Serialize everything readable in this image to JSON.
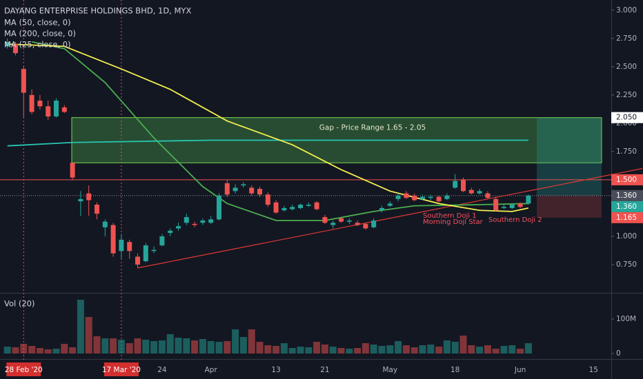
{
  "chart_data": {
    "type": "candlestick",
    "title": "DAYANG ENTERPRISE HOLDINGS BHD, 1D, MYX",
    "open": [
      2.68,
      2.7,
      2.48,
      2.25,
      2.2,
      2.15,
      2.06,
      2.14,
      1.65,
      1.31,
      1.38,
      1.28,
      1.08,
      1.1,
      0.87,
      0.95,
      0.82,
      0.78,
      0.87,
      0.92,
      1.03,
      1.07,
      1.12,
      1.11,
      1.12,
      1.12,
      1.15,
      1.47,
      1.4,
      1.45,
      1.43,
      1.42,
      1.37,
      1.3,
      1.23,
      1.24,
      1.25,
      1.27,
      1.3,
      1.17,
      1.1,
      1.16,
      1.13,
      1.12,
      1.11,
      1.08,
      1.23,
      1.27,
      1.33,
      1.38,
      1.36,
      1.33,
      1.34,
      1.35,
      1.33,
      1.43,
      1.5,
      1.41,
      1.38,
      1.38,
      1.33,
      1.25,
      1.25,
      1.29,
      1.29
    ],
    "high": [
      2.75,
      2.72,
      2.5,
      2.3,
      2.25,
      2.2,
      2.22,
      2.16,
      1.65,
      1.4,
      1.45,
      1.3,
      1.15,
      1.12,
      1.02,
      0.97,
      0.85,
      0.94,
      0.91,
      1.02,
      1.07,
      1.12,
      1.2,
      1.13,
      1.16,
      1.18,
      1.38,
      1.5,
      1.46,
      1.48,
      1.45,
      1.44,
      1.39,
      1.32,
      1.27,
      1.28,
      1.29,
      1.3,
      1.31,
      1.19,
      1.14,
      1.17,
      1.16,
      1.14,
      1.12,
      1.16,
      1.27,
      1.31,
      1.38,
      1.4,
      1.38,
      1.37,
      1.37,
      1.36,
      1.38,
      1.55,
      1.52,
      1.43,
      1.42,
      1.4,
      1.35,
      1.28,
      1.29,
      1.3,
      1.37
    ],
    "low": [
      2.66,
      2.6,
      2.05,
      2.08,
      2.12,
      2.03,
      2.05,
      2.09,
      1.5,
      1.18,
      1.18,
      1.15,
      1.0,
      0.82,
      0.8,
      0.8,
      0.72,
      0.77,
      0.85,
      0.91,
      1.0,
      1.05,
      1.1,
      1.08,
      1.1,
      1.11,
      1.14,
      1.35,
      1.38,
      1.43,
      1.36,
      1.35,
      1.26,
      1.2,
      1.22,
      1.23,
      1.24,
      1.26,
      1.23,
      1.11,
      1.07,
      1.12,
      1.11,
      1.09,
      1.06,
      1.07,
      1.21,
      1.26,
      1.31,
      1.33,
      1.31,
      1.32,
      1.32,
      1.3,
      1.32,
      1.42,
      1.39,
      1.37,
      1.37,
      1.33,
      1.22,
      1.24,
      1.24,
      1.25,
      1.28
    ],
    "close": [
      2.72,
      2.62,
      2.27,
      2.1,
      2.15,
      2.06,
      2.2,
      2.1,
      1.52,
      1.33,
      1.32,
      1.2,
      1.13,
      0.85,
      0.97,
      0.87,
      0.75,
      0.92,
      0.88,
      1.0,
      1.05,
      1.09,
      1.17,
      1.1,
      1.14,
      1.15,
      1.36,
      1.37,
      1.43,
      1.46,
      1.38,
      1.37,
      1.28,
      1.21,
      1.25,
      1.26,
      1.28,
      1.28,
      1.24,
      1.12,
      1.12,
      1.13,
      1.14,
      1.1,
      1.07,
      1.14,
      1.25,
      1.29,
      1.36,
      1.34,
      1.32,
      1.35,
      1.35,
      1.31,
      1.36,
      1.49,
      1.4,
      1.38,
      1.4,
      1.34,
      1.23,
      1.26,
      1.28,
      1.26,
      1.36
    ],
    "up_color": "#26a69a",
    "down_color": "#ef5350",
    "ylim": [
      0.5,
      3.09
    ],
    "yticks": [
      {
        "value": 3,
        "label": "3.000"
      },
      {
        "value": 2.75,
        "label": "2.750"
      },
      {
        "value": 2.5,
        "label": "2.500"
      },
      {
        "value": 2.25,
        "label": "2.250"
      },
      {
        "value": 2,
        "label": "2.000"
      },
      {
        "value": 1.75,
        "label": "1.750"
      },
      {
        "value": 1,
        "label": "1.000"
      },
      {
        "value": 0.75,
        "label": "0.750"
      }
    ],
    "xticks": [
      {
        "value": 2,
        "label": "28 Feb '20"
      },
      {
        "value": 14,
        "label": "17 Mar '20"
      },
      {
        "value": 19,
        "label": "24"
      },
      {
        "value": 25,
        "label": "Apr"
      },
      {
        "value": 33,
        "label": "13"
      },
      {
        "value": 39,
        "label": "21"
      },
      {
        "value": 47,
        "label": "May"
      },
      {
        "value": 55,
        "label": "18"
      },
      {
        "value": 63,
        "label": "Jun"
      },
      {
        "value": 72,
        "label": "15"
      }
    ],
    "highlight_ticks": [
      0,
      1
    ],
    "moving_averages": [
      {
        "name": "MA (50, close, 0)",
        "color": "#4caf50",
        "x": [
          3,
          7,
          12,
          18,
          24,
          27,
          33,
          39,
          45,
          50,
          58,
          64
        ],
        "values": [
          2.72,
          2.66,
          2.36,
          1.87,
          1.44,
          1.29,
          1.14,
          1.14,
          1.22,
          1.27,
          1.28,
          1.29
        ]
      },
      {
        "name": "MA (200, close, 0)",
        "color": "#26c6b0",
        "x": [
          0,
          8,
          25,
          42,
          64
        ],
        "values": [
          1.8,
          1.83,
          1.85,
          1.85,
          1.85
        ]
      },
      {
        "name": "MA (25, close, 0)",
        "color": "#f5f04f",
        "x": [
          0,
          7,
          14,
          20,
          27,
          35,
          41,
          47,
          53,
          58,
          62,
          64
        ],
        "values": [
          2.7,
          2.68,
          2.48,
          2.3,
          2.02,
          1.81,
          1.59,
          1.4,
          1.29,
          1.23,
          1.22,
          1.25
        ]
      }
    ],
    "gap_zone": {
      "text": "Gap - Price Range 1.65 - 2.05",
      "low": 1.65,
      "high": 2.05
    },
    "projection": {
      "target": 2.05,
      "entry": 1.36,
      "stop": 1.165
    },
    "trendline": {
      "x": [
        16,
        78
      ],
      "values": [
        0.72,
        1.6
      ]
    },
    "resistance_line": 1.5,
    "last_price": 1.36,
    "annotations": [
      {
        "text": "Southern Doji 1"
      },
      {
        "text": "Morning Doji Star"
      },
      {
        "text": "Southern Doji 2"
      }
    ],
    "price_labels": [
      {
        "value": 2.05,
        "label": "2.050",
        "color": "#ffffff"
      },
      {
        "value": 1.5,
        "label": "1.500",
        "color": "#ef5350"
      },
      {
        "value": 1.36,
        "label": "1.360",
        "color": "#4a4e5a"
      },
      {
        "value": 1.36,
        "label": "1.360",
        "color": "#26a69a"
      },
      {
        "value": 1.165,
        "label": "1.165",
        "color": "#ef5350"
      }
    ],
    "volume": {
      "title": "Vol (20)",
      "values": [
        20,
        18,
        28,
        22,
        16,
        12,
        14,
        28,
        18,
        156,
        106,
        50,
        44,
        44,
        40,
        30,
        44,
        40,
        36,
        38,
        56,
        46,
        44,
        38,
        42,
        36,
        34,
        36,
        70,
        48,
        70,
        34,
        24,
        22,
        30,
        16,
        20,
        18,
        34,
        26,
        20,
        16,
        14,
        16,
        30,
        26,
        22,
        24,
        36,
        24,
        18,
        24,
        26,
        20,
        38,
        34,
        52,
        24,
        20,
        24,
        14,
        22,
        24,
        14,
        30
      ],
      "ylim": [
        -18,
        170
      ],
      "yticks": [
        0,
        {
          "value": 100,
          "label": "100M"
        }
      ]
    }
  }
}
